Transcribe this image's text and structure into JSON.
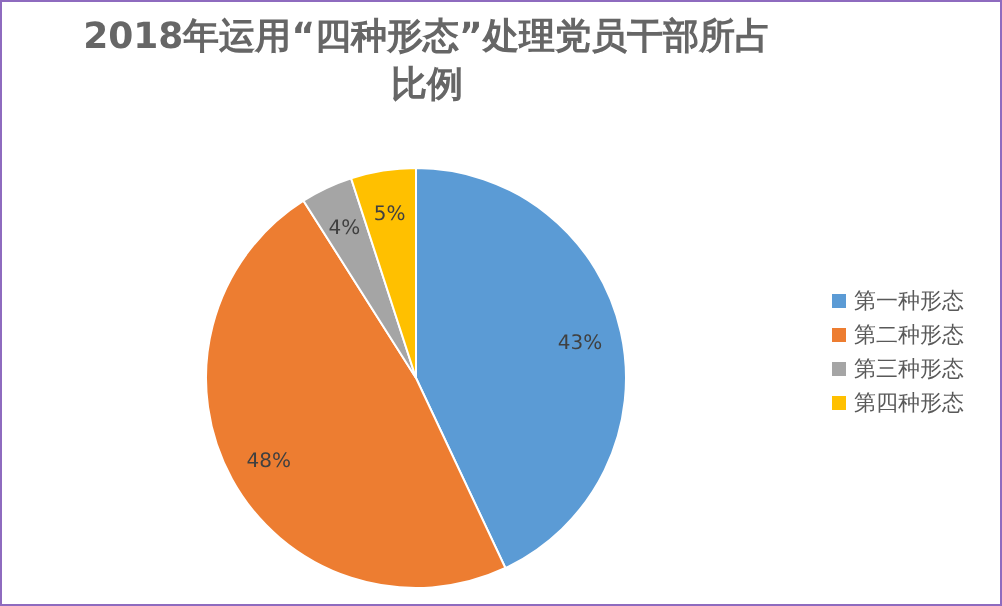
{
  "chart_data": {
    "type": "pie",
    "title": "2018年运用“四种形态”处理党员干部所占比例",
    "categories": [
      "第一种形态",
      "第二种形态",
      "第三种形态",
      "第四种形态"
    ],
    "values": [
      43,
      48,
      4,
      5
    ],
    "colors": [
      "#5b9bd5",
      "#ed7d31",
      "#a5a5a5",
      "#ffc000"
    ],
    "value_labels": [
      "43%",
      "48%",
      "4%",
      "5%"
    ],
    "legend": "right"
  }
}
